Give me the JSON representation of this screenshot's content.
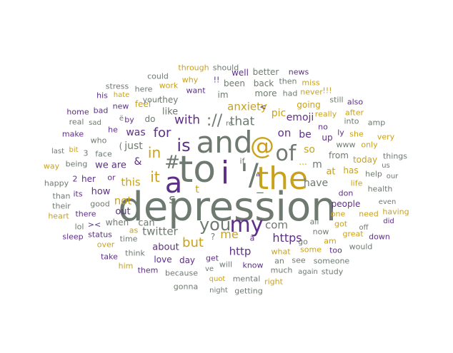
{
  "colors": {
    "grey": "#6e7a70",
    "purple": "#5e2f87",
    "gold": "#c9a21b"
  },
  "words": [
    {
      "text": "depression",
      "color": "grey"
    },
    {
      "text": "to",
      "color": "grey"
    },
    {
      "text": "and",
      "color": "grey"
    },
    {
      "text": "the",
      "color": "gold"
    },
    {
      "text": "i",
      "color": "purple"
    },
    {
      "text": "'/",
      "color": "grey"
    },
    {
      "text": "a",
      "color": "purple"
    },
    {
      "text": "@",
      "color": "gold"
    },
    {
      "text": "of",
      "color": "grey"
    },
    {
      "text": "my",
      "color": "purple"
    },
    {
      "text": "you",
      "color": "grey"
    },
    {
      "text": "is",
      "color": "purple"
    },
    {
      "text": "#",
      "color": "grey"
    },
    {
      "text": "it",
      "color": "gold"
    },
    {
      "text": "in",
      "color": "gold"
    },
    {
      "text": "for",
      "color": "purple"
    },
    {
      "text": "with",
      "color": "purple"
    },
    {
      "text": "://",
      "color": "grey"
    },
    {
      "text": "that",
      "color": "grey"
    },
    {
      "text": "me",
      "color": "gold"
    },
    {
      "text": "com",
      "color": "grey"
    },
    {
      "text": "but",
      "color": "gold"
    },
    {
      "text": "this",
      "color": "gold"
    },
    {
      "text": "not",
      "color": "gold"
    },
    {
      "text": "twitter",
      "color": "grey"
    },
    {
      "text": "https",
      "color": "purple"
    },
    {
      "text": "http",
      "color": "purple"
    },
    {
      "text": "about",
      "color": "purple"
    },
    {
      "text": "anxiety",
      "color": "gold"
    },
    {
      "text": "emoji",
      "color": "purple"
    },
    {
      "text": "pic",
      "color": "gold"
    },
    {
      "text": "on",
      "color": "purple"
    },
    {
      "text": "be",
      "color": "purple"
    },
    {
      "text": "so",
      "color": "gold"
    },
    {
      "text": "have",
      "color": "grey"
    },
    {
      "text": "was",
      "color": "purple"
    },
    {
      "text": "just",
      "color": "grey"
    },
    {
      "text": "&",
      "color": "purple"
    },
    {
      "text": "we are",
      "color": "purple"
    },
    {
      "text": "how",
      "color": "purple"
    },
    {
      "text": "out",
      "color": "purple"
    },
    {
      "text": "when",
      "color": "grey"
    },
    {
      "text": "can",
      "color": "grey"
    },
    {
      "text": "at",
      "color": "gold"
    },
    {
      "text": "m",
      "color": "grey"
    },
    {
      "text": "from",
      "color": "grey"
    },
    {
      "text": "today",
      "color": "gold"
    },
    {
      "text": "has",
      "color": "gold"
    },
    {
      "text": "her",
      "color": "purple"
    },
    {
      "text": "like",
      "color": "grey"
    },
    {
      "text": "do",
      "color": "grey"
    },
    {
      "text": "they",
      "color": "grey"
    },
    {
      "text": "im",
      "color": "grey"
    },
    {
      "text": "well",
      "color": "purple"
    },
    {
      "text": "more",
      "color": "grey"
    },
    {
      "text": "been",
      "color": "grey"
    },
    {
      "text": "back",
      "color": "grey"
    },
    {
      "text": "better",
      "color": "grey"
    },
    {
      "text": "news",
      "color": "purple"
    },
    {
      "text": "then",
      "color": "grey"
    },
    {
      "text": "miss",
      "color": "gold"
    },
    {
      "text": "had",
      "color": "grey"
    },
    {
      "text": "going",
      "color": "gold"
    },
    {
      "text": "never",
      "color": "gold"
    },
    {
      "text": "still",
      "color": "grey"
    },
    {
      "text": "also",
      "color": "purple"
    },
    {
      "text": "after",
      "color": "gold"
    },
    {
      "text": "into",
      "color": "grey"
    },
    {
      "text": "amp",
      "color": "grey"
    },
    {
      "text": "really",
      "color": "gold"
    },
    {
      "text": "no",
      "color": "purple"
    },
    {
      "text": "up",
      "color": "purple"
    },
    {
      "text": "ly",
      "color": "purple"
    },
    {
      "text": "she",
      "color": "gold"
    },
    {
      "text": "very",
      "color": "gold"
    },
    {
      "text": "www",
      "color": "grey"
    },
    {
      "text": "only",
      "color": "gold"
    },
    {
      "text": "things",
      "color": "grey"
    },
    {
      "text": "us",
      "color": "grey"
    },
    {
      "text": "our",
      "color": "grey"
    },
    {
      "text": "help",
      "color": "grey"
    },
    {
      "text": "health",
      "color": "grey"
    },
    {
      "text": "life",
      "color": "gold"
    },
    {
      "text": "even",
      "color": "grey"
    },
    {
      "text": "having",
      "color": "gold"
    },
    {
      "text": "did",
      "color": "purple"
    },
    {
      "text": "down",
      "color": "purple"
    },
    {
      "text": "need",
      "color": "gold"
    },
    {
      "text": "one",
      "color": "gold"
    },
    {
      "text": "people",
      "color": "purple"
    },
    {
      "text": "don",
      "color": "purple"
    },
    {
      "text": "got",
      "color": "gold"
    },
    {
      "text": "off",
      "color": "grey"
    },
    {
      "text": "great",
      "color": "gold"
    },
    {
      "text": "would",
      "color": "grey"
    },
    {
      "text": "now",
      "color": "grey"
    },
    {
      "text": "am",
      "color": "gold"
    },
    {
      "text": "all",
      "color": "grey"
    },
    {
      "text": "go",
      "color": "grey"
    },
    {
      "text": "some",
      "color": "gold"
    },
    {
      "text": "too",
      "color": "purple"
    },
    {
      "text": "what",
      "color": "gold"
    },
    {
      "text": "see",
      "color": "grey"
    },
    {
      "text": "someone",
      "color": "grey"
    },
    {
      "text": "an",
      "color": "grey"
    },
    {
      "text": "much",
      "color": "grey"
    },
    {
      "text": "again",
      "color": "grey"
    },
    {
      "text": "study",
      "color": "grey"
    },
    {
      "text": "know",
      "color": "purple"
    },
    {
      "text": "will",
      "color": "grey"
    },
    {
      "text": "right",
      "color": "gold"
    },
    {
      "text": "mental",
      "color": "grey"
    },
    {
      "text": "getting",
      "color": "grey"
    },
    {
      "text": "night",
      "color": "grey"
    },
    {
      "text": "quot",
      "color": "gold"
    },
    {
      "text": "ve",
      "color": "grey"
    },
    {
      "text": "get",
      "color": "purple"
    },
    {
      "text": "day",
      "color": "purple"
    },
    {
      "text": "love",
      "color": "purple"
    },
    {
      "text": "because",
      "color": "grey"
    },
    {
      "text": "them",
      "color": "purple"
    },
    {
      "text": "gonna",
      "color": "grey"
    },
    {
      "text": "think",
      "color": "grey"
    },
    {
      "text": "him",
      "color": "gold"
    },
    {
      "text": "take",
      "color": "purple"
    },
    {
      "text": "time",
      "color": "grey"
    },
    {
      "text": "as",
      "color": "gold"
    },
    {
      "text": "status",
      "color": "purple"
    },
    {
      "text": "over",
      "color": "gold"
    },
    {
      "text": "><",
      "color": "purple"
    },
    {
      "text": "lol",
      "color": "grey"
    },
    {
      "text": "sleep",
      "color": "purple"
    },
    {
      "text": "there",
      "color": "purple"
    },
    {
      "text": "heart",
      "color": "gold"
    },
    {
      "text": "their",
      "color": "grey"
    },
    {
      "text": "than",
      "color": "grey"
    },
    {
      "text": "its",
      "color": "purple"
    },
    {
      "text": "good",
      "color": "grey"
    },
    {
      "text": "happy",
      "color": "grey"
    },
    {
      "text": "2",
      "color": "purple"
    },
    {
      "text": "way",
      "color": "gold"
    },
    {
      "text": "being",
      "color": "grey"
    },
    {
      "text": "last",
      "color": "grey"
    },
    {
      "text": "bit",
      "color": "gold"
    },
    {
      "text": "face",
      "color": "grey"
    },
    {
      "text": "or",
      "color": "purple"
    },
    {
      "text": "who",
      "color": "grey"
    },
    {
      "text": "make",
      "color": "purple"
    },
    {
      "text": "real",
      "color": "grey"
    },
    {
      "text": "he",
      "color": "purple"
    },
    {
      "text": "by",
      "color": "purple"
    },
    {
      "text": "home",
      "color": "purple"
    },
    {
      "text": "sad",
      "color": "grey"
    },
    {
      "text": "bad",
      "color": "purple"
    },
    {
      "text": "new",
      "color": "purple"
    },
    {
      "text": "his",
      "color": "purple"
    },
    {
      "text": "hate",
      "color": "gold"
    },
    {
      "text": "stress",
      "color": "grey"
    },
    {
      "text": "here",
      "color": "grey"
    },
    {
      "text": "feel",
      "color": "gold"
    },
    {
      "text": "your",
      "color": "grey"
    },
    {
      "text": "could",
      "color": "grey"
    },
    {
      "text": "work",
      "color": "gold"
    },
    {
      "text": "why",
      "color": "gold"
    },
    {
      "text": "want",
      "color": "purple"
    },
    {
      "text": "through",
      "color": "gold"
    },
    {
      "text": "should",
      "color": "grey"
    },
    {
      "text": "re",
      "color": "grey"
    },
    {
      "text": "<",
      "color": "purple"
    },
    {
      "text": "...",
      "color": "gold"
    },
    {
      "text": "?",
      "color": "grey"
    },
    {
      "text": "!!",
      "color": "purple"
    },
    {
      "text": "!!!",
      "color": "gold"
    },
    {
      "text": "if",
      "color": "grey"
    },
    {
      "text": "(",
      "color": "grey"
    },
    {
      "text": "\"",
      "color": "purple"
    },
    {
      "text": "s",
      "color": "grey"
    },
    {
      "text": "t",
      "color": "gold"
    },
    {
      "text": "_",
      "color": "grey"
    },
    {
      "text": "â",
      "color": "purple"
    },
    {
      "text": "ë",
      "color": "grey"
    },
    {
      "text": "3",
      "color": "grey"
    }
  ]
}
